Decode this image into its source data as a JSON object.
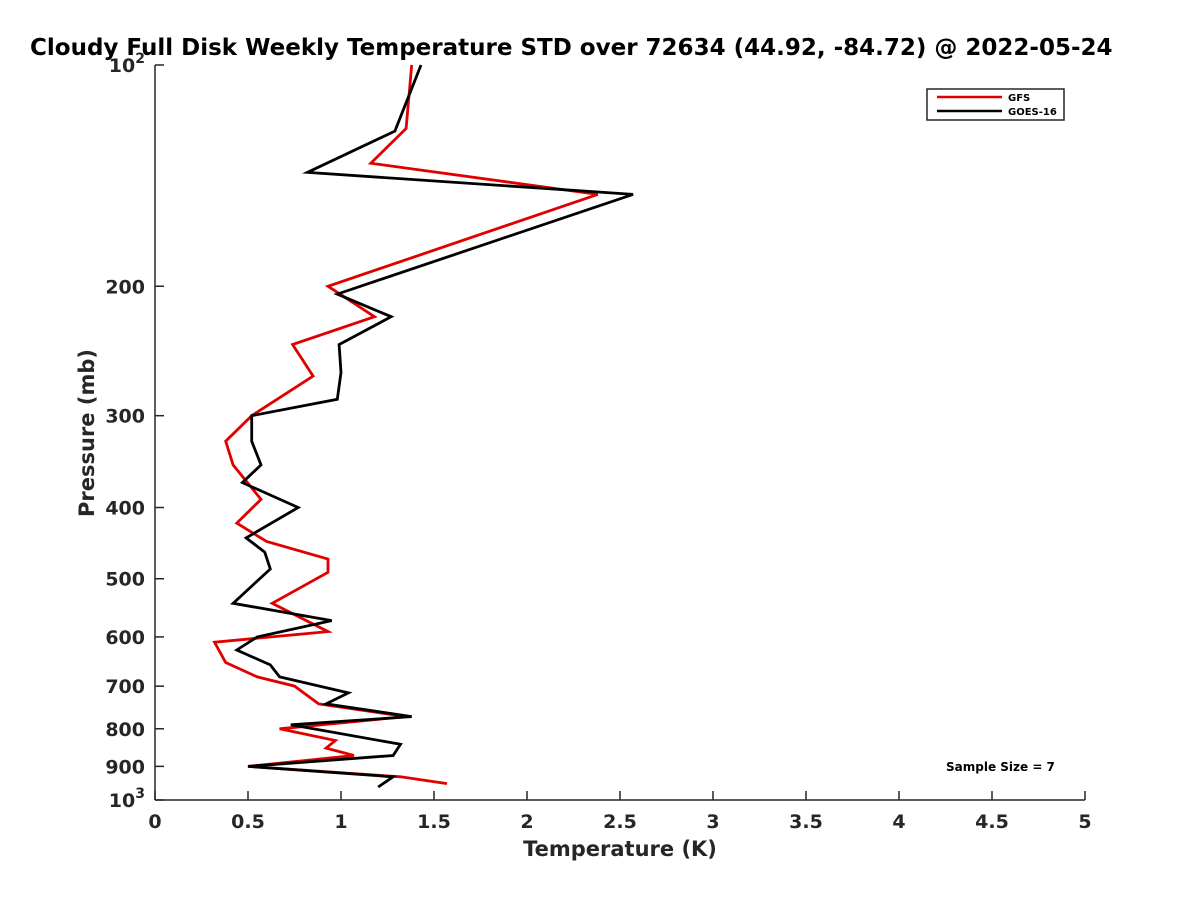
{
  "chart_data": {
    "type": "line",
    "title": "Cloudy Full Disk Weekly Temperature STD over 72634 (44.92, -84.72) @ 2022-05-24",
    "xlabel": "Temperature (K)",
    "ylabel": "Pressure (mb)",
    "xlim": [
      0,
      5
    ],
    "ylim": [
      100,
      1000
    ],
    "yscale": "log",
    "y_reversed": true,
    "x_ticks": [
      "0",
      "0.5",
      "1",
      "1.5",
      "2",
      "2.5",
      "3",
      "3.5",
      "4",
      "4.5",
      "5"
    ],
    "y_ticks": [
      {
        "value": 100,
        "base": "10",
        "exp": "2"
      },
      {
        "value": 200,
        "label": "200"
      },
      {
        "value": 300,
        "label": "300"
      },
      {
        "value": 400,
        "label": "400"
      },
      {
        "value": 500,
        "label": "500"
      },
      {
        "value": 600,
        "label": "600"
      },
      {
        "value": 700,
        "label": "700"
      },
      {
        "value": 800,
        "label": "800"
      },
      {
        "value": 900,
        "label": "900"
      },
      {
        "value": 1000,
        "base": "10",
        "exp": "3"
      }
    ],
    "grid": false,
    "legend_position": "top-right",
    "annotation": "Sample Size = 7",
    "series": [
      {
        "name": "GFS",
        "color": "#e00000",
        "points": [
          [
            1.38,
            100
          ],
          [
            1.35,
            122
          ],
          [
            1.16,
            136
          ],
          [
            2.38,
            150
          ],
          [
            0.93,
            200
          ],
          [
            1.18,
            220
          ],
          [
            0.74,
            240
          ],
          [
            0.85,
            265
          ],
          [
            0.52,
            300
          ],
          [
            0.38,
            325
          ],
          [
            0.42,
            350
          ],
          [
            0.57,
            390
          ],
          [
            0.44,
            420
          ],
          [
            0.6,
            445
          ],
          [
            0.93,
            470
          ],
          [
            0.93,
            490
          ],
          [
            0.63,
            540
          ],
          [
            0.93,
            590
          ],
          [
            0.32,
            610
          ],
          [
            0.38,
            650
          ],
          [
            0.55,
            680
          ],
          [
            0.75,
            700
          ],
          [
            0.88,
            740
          ],
          [
            1.35,
            770
          ],
          [
            0.67,
            800
          ],
          [
            0.97,
            830
          ],
          [
            0.92,
            850
          ],
          [
            1.07,
            870
          ],
          [
            0.5,
            900
          ],
          [
            1.32,
            930
          ],
          [
            1.57,
            950
          ]
        ]
      },
      {
        "name": "GOES-16",
        "color": "#000000",
        "points": [
          [
            1.43,
            100
          ],
          [
            1.29,
            123
          ],
          [
            0.82,
            140
          ],
          [
            2.57,
            150
          ],
          [
            0.98,
            205
          ],
          [
            1.27,
            220
          ],
          [
            0.99,
            240
          ],
          [
            1.0,
            262
          ],
          [
            0.98,
            285
          ],
          [
            0.52,
            300
          ],
          [
            0.52,
            325
          ],
          [
            0.57,
            350
          ],
          [
            0.47,
            370
          ],
          [
            0.77,
            400
          ],
          [
            0.49,
            440
          ],
          [
            0.59,
            460
          ],
          [
            0.62,
            485
          ],
          [
            0.42,
            540
          ],
          [
            0.95,
            570
          ],
          [
            0.55,
            600
          ],
          [
            0.44,
            625
          ],
          [
            0.62,
            655
          ],
          [
            0.67,
            680
          ],
          [
            1.04,
            715
          ],
          [
            0.92,
            740
          ],
          [
            1.38,
            770
          ],
          [
            0.73,
            790
          ],
          [
            1.32,
            840
          ],
          [
            1.28,
            870
          ],
          [
            0.5,
            900
          ],
          [
            1.28,
            930
          ],
          [
            1.2,
            960
          ]
        ]
      }
    ]
  }
}
